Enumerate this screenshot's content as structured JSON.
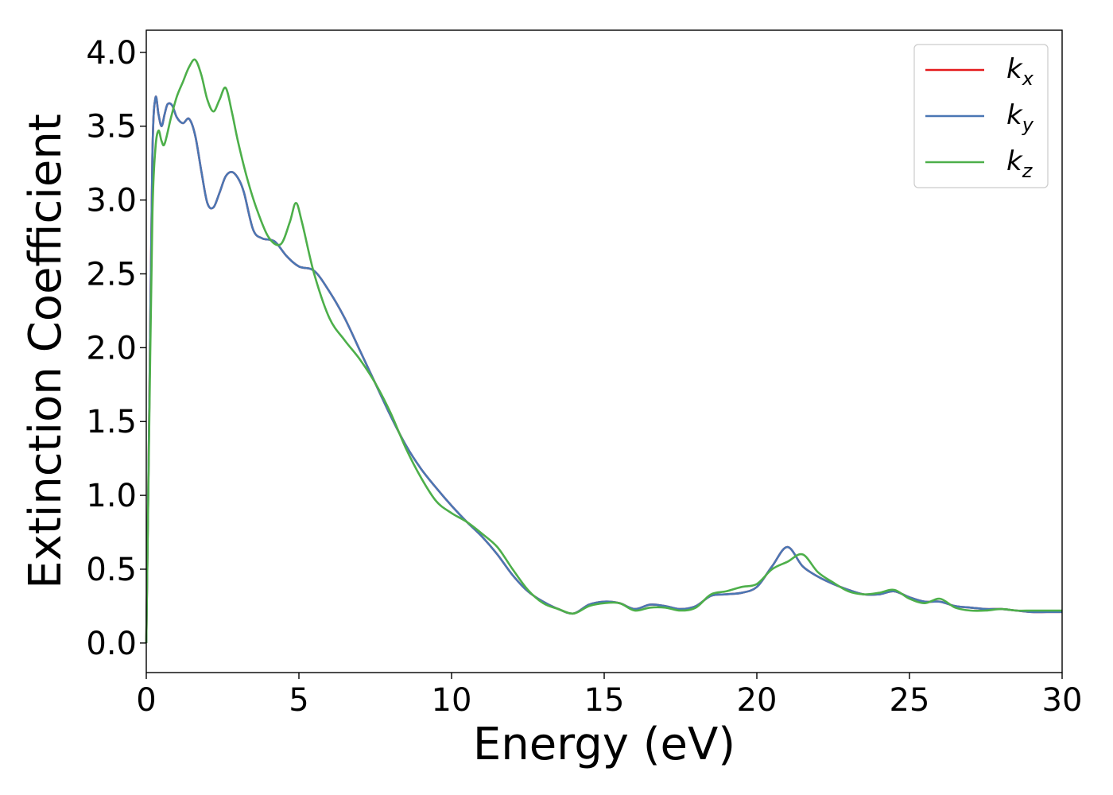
{
  "chart_data": {
    "type": "line",
    "xlabel": "Energy (eV)",
    "ylabel": "Extinction Coefficient",
    "xlim": [
      0,
      30
    ],
    "ylim": [
      -0.2,
      4.15
    ],
    "xticks": [
      0,
      5,
      10,
      15,
      20,
      25,
      30
    ],
    "xtick_labels": [
      "0",
      "5",
      "10",
      "15",
      "20",
      "25",
      "30"
    ],
    "yticks": [
      0.0,
      0.5,
      1.0,
      1.5,
      2.0,
      2.5,
      3.0,
      3.5,
      4.0
    ],
    "ytick_labels": [
      "0.0",
      "0.5",
      "1.0",
      "1.5",
      "2.0",
      "2.5",
      "3.0",
      "3.5",
      "4.0"
    ],
    "grid": false,
    "legend_position": "top-right",
    "series": [
      {
        "name": "k_x",
        "legend_base": "k",
        "legend_sub": "x",
        "color": "#e41a1c",
        "x": [
          0,
          0.1,
          0.2,
          0.3,
          0.4,
          0.5,
          0.6,
          0.7,
          0.85,
          1.0,
          1.2,
          1.4,
          1.6,
          1.8,
          2.0,
          2.2,
          2.4,
          2.6,
          2.8,
          3.0,
          3.2,
          3.5,
          3.8,
          4.2,
          4.6,
          5.0,
          5.5,
          6.0,
          6.5,
          7.0,
          7.5,
          8.0,
          8.5,
          9.0,
          9.5,
          10.0,
          10.5,
          11.0,
          11.5,
          12.0,
          12.5,
          13.0,
          13.5,
          14.0,
          14.5,
          15.0,
          15.5,
          16.0,
          16.5,
          17.0,
          17.5,
          18.0,
          18.5,
          19.0,
          19.5,
          20.0,
          20.5,
          21.0,
          21.5,
          22.0,
          22.5,
          23.0,
          23.5,
          24.0,
          24.5,
          25.0,
          25.5,
          26.0,
          26.5,
          27.0,
          27.5,
          28.0,
          28.5,
          29.0,
          29.5,
          30.0
        ],
        "y": [
          0.0,
          1.6,
          3.3,
          3.69,
          3.58,
          3.5,
          3.58,
          3.65,
          3.64,
          3.56,
          3.52,
          3.55,
          3.44,
          3.2,
          2.98,
          2.95,
          3.05,
          3.16,
          3.19,
          3.15,
          3.05,
          2.8,
          2.74,
          2.72,
          2.62,
          2.55,
          2.52,
          2.38,
          2.2,
          1.98,
          1.76,
          1.54,
          1.34,
          1.18,
          1.05,
          0.93,
          0.82,
          0.72,
          0.6,
          0.46,
          0.35,
          0.28,
          0.23,
          0.2,
          0.26,
          0.28,
          0.27,
          0.23,
          0.26,
          0.25,
          0.23,
          0.25,
          0.32,
          0.33,
          0.34,
          0.38,
          0.52,
          0.65,
          0.52,
          0.45,
          0.4,
          0.36,
          0.33,
          0.33,
          0.35,
          0.31,
          0.28,
          0.28,
          0.25,
          0.24,
          0.23,
          0.23,
          0.22,
          0.21,
          0.21,
          0.21
        ]
      },
      {
        "name": "k_y",
        "legend_base": "k",
        "legend_sub": "y",
        "color": "#4a77b4",
        "x": [
          0,
          0.1,
          0.2,
          0.3,
          0.4,
          0.5,
          0.6,
          0.7,
          0.85,
          1.0,
          1.2,
          1.4,
          1.6,
          1.8,
          2.0,
          2.2,
          2.4,
          2.6,
          2.8,
          3.0,
          3.2,
          3.5,
          3.8,
          4.2,
          4.6,
          5.0,
          5.5,
          6.0,
          6.5,
          7.0,
          7.5,
          8.0,
          8.5,
          9.0,
          9.5,
          10.0,
          10.5,
          11.0,
          11.5,
          12.0,
          12.5,
          13.0,
          13.5,
          14.0,
          14.5,
          15.0,
          15.5,
          16.0,
          16.5,
          17.0,
          17.5,
          18.0,
          18.5,
          19.0,
          19.5,
          20.0,
          20.5,
          21.0,
          21.5,
          22.0,
          22.5,
          23.0,
          23.5,
          24.0,
          24.5,
          25.0,
          25.5,
          26.0,
          26.5,
          27.0,
          27.5,
          28.0,
          28.5,
          29.0,
          29.5,
          30.0
        ],
        "y": [
          0.0,
          1.6,
          3.3,
          3.69,
          3.58,
          3.5,
          3.58,
          3.65,
          3.64,
          3.56,
          3.52,
          3.55,
          3.44,
          3.2,
          2.98,
          2.95,
          3.05,
          3.16,
          3.19,
          3.15,
          3.05,
          2.8,
          2.74,
          2.72,
          2.62,
          2.55,
          2.52,
          2.38,
          2.2,
          1.98,
          1.76,
          1.54,
          1.34,
          1.18,
          1.05,
          0.93,
          0.82,
          0.72,
          0.6,
          0.46,
          0.35,
          0.28,
          0.23,
          0.2,
          0.26,
          0.28,
          0.27,
          0.23,
          0.26,
          0.25,
          0.23,
          0.25,
          0.32,
          0.33,
          0.34,
          0.38,
          0.52,
          0.65,
          0.52,
          0.45,
          0.4,
          0.36,
          0.33,
          0.33,
          0.35,
          0.31,
          0.28,
          0.28,
          0.25,
          0.24,
          0.23,
          0.23,
          0.22,
          0.21,
          0.21,
          0.21
        ]
      },
      {
        "name": "k_z",
        "legend_base": "k",
        "legend_sub": "z",
        "color": "#4daf4a",
        "x": [
          0,
          0.1,
          0.2,
          0.3,
          0.4,
          0.5,
          0.6,
          0.8,
          1.0,
          1.2,
          1.4,
          1.6,
          1.8,
          2.0,
          2.2,
          2.4,
          2.6,
          2.8,
          3.0,
          3.3,
          3.6,
          4.0,
          4.4,
          4.7,
          4.9,
          5.1,
          5.5,
          6.0,
          6.5,
          7.0,
          7.5,
          8.0,
          8.5,
          9.0,
          9.5,
          10.0,
          10.5,
          11.0,
          11.5,
          12.0,
          12.5,
          13.0,
          13.5,
          14.0,
          14.5,
          15.0,
          15.5,
          16.0,
          16.5,
          17.0,
          17.5,
          18.0,
          18.5,
          19.0,
          19.5,
          20.0,
          20.5,
          21.0,
          21.5,
          22.0,
          22.5,
          23.0,
          23.5,
          24.0,
          24.5,
          25.0,
          25.5,
          26.0,
          26.5,
          27.0,
          27.5,
          28.0,
          28.5,
          29.0,
          29.5,
          30.0
        ],
        "y": [
          0.0,
          1.5,
          2.9,
          3.35,
          3.47,
          3.4,
          3.38,
          3.55,
          3.7,
          3.8,
          3.9,
          3.95,
          3.85,
          3.68,
          3.6,
          3.68,
          3.76,
          3.6,
          3.4,
          3.15,
          2.95,
          2.75,
          2.7,
          2.85,
          2.98,
          2.85,
          2.5,
          2.2,
          2.05,
          1.92,
          1.76,
          1.56,
          1.32,
          1.12,
          0.96,
          0.88,
          0.82,
          0.74,
          0.65,
          0.5,
          0.36,
          0.27,
          0.23,
          0.2,
          0.25,
          0.27,
          0.27,
          0.22,
          0.24,
          0.24,
          0.22,
          0.24,
          0.33,
          0.35,
          0.38,
          0.4,
          0.5,
          0.55,
          0.6,
          0.48,
          0.41,
          0.35,
          0.33,
          0.34,
          0.36,
          0.3,
          0.27,
          0.3,
          0.24,
          0.22,
          0.22,
          0.23,
          0.22,
          0.22,
          0.22,
          0.22
        ]
      }
    ]
  }
}
